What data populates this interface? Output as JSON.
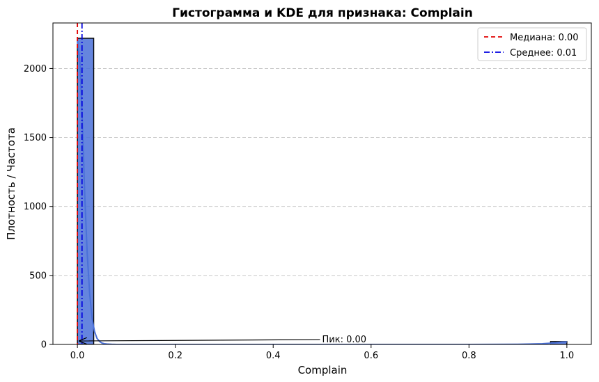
{
  "chart_data": {
    "type": "bar",
    "title": "Гистограмма и KDE для признака: Complain",
    "xlabel": "Complain",
    "ylabel": "Плотность / Частота",
    "xlim": [
      -0.05,
      1.05
    ],
    "ylim": [
      0,
      2330
    ],
    "xticks": [
      0.0,
      0.2,
      0.4,
      0.6,
      0.8,
      1.0
    ],
    "xtick_labels": [
      "0.0",
      "0.2",
      "0.4",
      "0.6",
      "0.8",
      "1.0"
    ],
    "yticks": [
      0,
      500,
      1000,
      1500,
      2000
    ],
    "ytick_labels": [
      "0",
      "500",
      "1000",
      "1500",
      "2000"
    ],
    "grid": "y-dashed",
    "histogram": {
      "bins": [
        {
          "x0": 0.0,
          "x1": 0.0333,
          "count": 2219
        },
        {
          "x0": 0.9667,
          "x1": 1.0,
          "count": 21
        }
      ],
      "color": "#4a70d8",
      "edge_color": "#000000"
    },
    "kde": {
      "color": "#4a70d8",
      "x": [
        0.0,
        0.005,
        0.01,
        0.015,
        0.02,
        0.025,
        0.03,
        0.035,
        0.04,
        0.045,
        0.05,
        0.055,
        0.06,
        0.065,
        0.07,
        0.08,
        0.1,
        0.2,
        0.4,
        0.6,
        0.8,
        0.9,
        0.95,
        0.97,
        0.98,
        0.99,
        1.0
      ],
      "y": [
        2200,
        2050,
        1620,
        1080,
        660,
        370,
        190,
        95,
        45,
        22,
        10,
        5,
        3,
        2,
        1,
        0,
        0,
        0,
        0,
        0,
        0,
        1,
        5,
        10,
        14,
        17,
        18
      ]
    },
    "vlines": [
      {
        "label": "Медиана: 0.00",
        "x": 0.0,
        "color": "#e00000",
        "style": "dashed"
      },
      {
        "label": "Среднее: 0.01",
        "x": 0.0094,
        "color": "#0000e0",
        "style": "dashdot"
      }
    ],
    "legend": {
      "placement": "top-right",
      "entries": [
        "Медиана: 0.00",
        "Среднее: 0.01"
      ]
    },
    "annotation": {
      "text": "Пик: 0.00",
      "point": [
        0.0,
        20
      ],
      "text_pos": [
        0.5,
        40
      ]
    }
  }
}
